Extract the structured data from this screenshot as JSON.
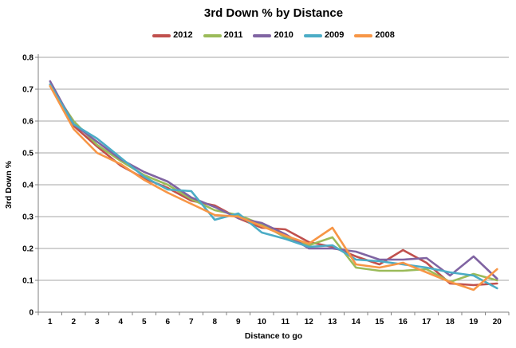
{
  "chart_data": {
    "type": "line",
    "title": "3rd Down % by Distance",
    "xlabel": "Distance to go",
    "ylabel": "3rd Down %",
    "x": [
      1,
      2,
      3,
      4,
      5,
      6,
      7,
      8,
      9,
      10,
      11,
      12,
      13,
      14,
      15,
      16,
      17,
      18,
      19,
      20
    ],
    "ylim": [
      0,
      0.8
    ],
    "ytick_step": 0.1,
    "grid": true,
    "legend_position": "top-center",
    "colors": {
      "gridline": "#A6A6A6",
      "axis": "#808080",
      "background": "#FFFFFF",
      "text": "#000000"
    },
    "series": [
      {
        "name": "2012",
        "color": "#C0504D",
        "values": [
          0.715,
          0.585,
          0.52,
          0.46,
          0.42,
          0.39,
          0.35,
          0.335,
          0.295,
          0.265,
          0.26,
          0.22,
          0.205,
          0.175,
          0.15,
          0.195,
          0.155,
          0.09,
          0.085,
          0.09
        ]
      },
      {
        "name": "2011",
        "color": "#9BBB59",
        "values": [
          0.71,
          0.6,
          0.525,
          0.475,
          0.43,
          0.4,
          0.355,
          0.32,
          0.305,
          0.275,
          0.235,
          0.21,
          0.235,
          0.14,
          0.13,
          0.13,
          0.135,
          0.095,
          0.12,
          0.1
        ]
      },
      {
        "name": "2010",
        "color": "#8064A2",
        "values": [
          0.725,
          0.59,
          0.535,
          0.48,
          0.44,
          0.41,
          0.36,
          0.33,
          0.295,
          0.28,
          0.245,
          0.2,
          0.2,
          0.19,
          0.165,
          0.165,
          0.17,
          0.115,
          0.175,
          0.105
        ]
      },
      {
        "name": "2009",
        "color": "#4BACC6",
        "values": [
          0.715,
          0.59,
          0.545,
          0.485,
          0.425,
          0.385,
          0.38,
          0.29,
          0.31,
          0.25,
          0.23,
          0.205,
          0.21,
          0.165,
          0.16,
          0.15,
          0.14,
          0.125,
          0.115,
          0.075
        ]
      },
      {
        "name": "2008",
        "color": "#F79646",
        "values": [
          0.71,
          0.575,
          0.5,
          0.465,
          0.415,
          0.375,
          0.34,
          0.305,
          0.3,
          0.27,
          0.24,
          0.215,
          0.265,
          0.15,
          0.14,
          0.155,
          0.125,
          0.095,
          0.07,
          0.135
        ]
      }
    ]
  }
}
